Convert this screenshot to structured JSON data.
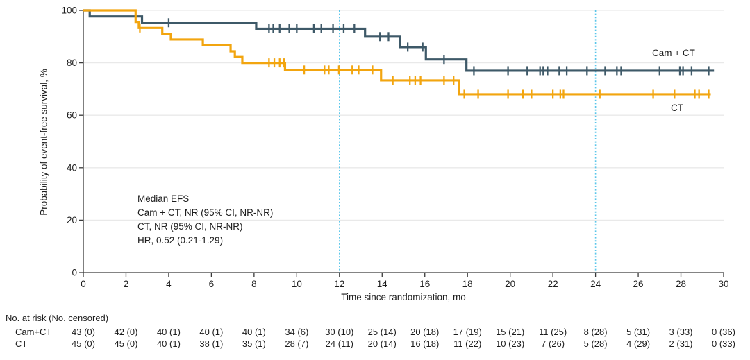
{
  "chart_data": {
    "type": "line",
    "subtype": "kaplan-meier-step",
    "title": "",
    "xlabel": "Time since randomization, mo",
    "ylabel": "Probability of event-free survival, %",
    "xlim": [
      0,
      30
    ],
    "ylim": [
      0,
      100
    ],
    "xticks": [
      0,
      2,
      4,
      6,
      8,
      10,
      12,
      14,
      16,
      18,
      20,
      22,
      24,
      26,
      28,
      30
    ],
    "yticks": [
      0,
      20,
      40,
      60,
      80,
      100
    ],
    "grid_y_values": [
      20,
      40,
      60,
      80,
      100
    ],
    "grid_on": true,
    "reference_lines_x": [
      12,
      24
    ],
    "reference_line_color": "#5bc6ea",
    "gridline_color": "#e9e9e9",
    "axis_color": "#3a3a3a",
    "annotation_lines": [
      "Median EFS",
      "Cam + CT, NR (95% CI, NR-NR)",
      "CT, NR (95% CI, NR-NR)",
      "HR, 0.52 (0.21-1.29)"
    ],
    "series": [
      {
        "id": "cam-ct",
        "name": "Cam+CT",
        "label": "Cam + CT",
        "color": "#3e5968",
        "end": 29.55,
        "steps": [
          [
            0,
            100
          ],
          [
            0.3,
            97.7
          ],
          [
            2.75,
            95.3
          ],
          [
            8.1,
            93.0
          ],
          [
            13.2,
            90.0
          ],
          [
            14.85,
            86.0
          ],
          [
            16.05,
            81.3
          ],
          [
            17.95,
            77.0
          ]
        ],
        "censors": [
          [
            4.0,
            95.3
          ],
          [
            8.7,
            93.0
          ],
          [
            8.9,
            93.0
          ],
          [
            9.2,
            93.0
          ],
          [
            9.65,
            93.0
          ],
          [
            10.0,
            93.0
          ],
          [
            10.8,
            93.0
          ],
          [
            11.15,
            93.0
          ],
          [
            11.7,
            93.0
          ],
          [
            12.2,
            93.0
          ],
          [
            12.7,
            93.0
          ],
          [
            13.9,
            90.0
          ],
          [
            14.3,
            90.0
          ],
          [
            15.2,
            86.0
          ],
          [
            15.9,
            86.0
          ],
          [
            16.9,
            81.3
          ],
          [
            18.3,
            77.0
          ],
          [
            19.9,
            77.0
          ],
          [
            20.8,
            77.0
          ],
          [
            21.4,
            77.0
          ],
          [
            21.55,
            77.0
          ],
          [
            21.75,
            77.0
          ],
          [
            22.3,
            77.0
          ],
          [
            22.65,
            77.0
          ],
          [
            23.6,
            77.0
          ],
          [
            24.45,
            77.0
          ],
          [
            25.0,
            77.0
          ],
          [
            25.2,
            77.0
          ],
          [
            27.0,
            77.0
          ],
          [
            27.95,
            77.0
          ],
          [
            28.1,
            77.0
          ],
          [
            28.5,
            77.0
          ],
          [
            29.3,
            77.0
          ]
        ]
      },
      {
        "id": "ct",
        "name": "CT",
        "label": "CT",
        "color": "#f2a50f",
        "end": 29.4,
        "steps": [
          [
            0,
            100
          ],
          [
            2.45,
            95.6
          ],
          [
            2.6,
            93.3
          ],
          [
            3.7,
            91.1
          ],
          [
            4.1,
            88.9
          ],
          [
            5.6,
            86.7
          ],
          [
            6.9,
            84.4
          ],
          [
            7.1,
            82.2
          ],
          [
            7.45,
            80.0
          ],
          [
            9.45,
            77.3
          ],
          [
            13.95,
            73.3
          ],
          [
            17.6,
            68.0
          ]
        ],
        "censors": [
          [
            2.65,
            93.3
          ],
          [
            8.7,
            80.0
          ],
          [
            8.95,
            80.0
          ],
          [
            9.2,
            80.0
          ],
          [
            9.4,
            80.0
          ],
          [
            10.35,
            77.3
          ],
          [
            11.3,
            77.3
          ],
          [
            11.5,
            77.3
          ],
          [
            11.97,
            77.3
          ],
          [
            12.6,
            77.3
          ],
          [
            12.9,
            77.3
          ],
          [
            13.55,
            77.3
          ],
          [
            14.5,
            73.3
          ],
          [
            15.3,
            73.3
          ],
          [
            15.55,
            73.3
          ],
          [
            15.8,
            73.3
          ],
          [
            16.9,
            73.3
          ],
          [
            17.35,
            73.3
          ],
          [
            17.85,
            68.0
          ],
          [
            18.5,
            68.0
          ],
          [
            19.9,
            68.0
          ],
          [
            20.6,
            68.0
          ],
          [
            21.0,
            68.0
          ],
          [
            22.0,
            68.0
          ],
          [
            22.35,
            68.0
          ],
          [
            22.5,
            68.0
          ],
          [
            24.2,
            68.0
          ],
          [
            26.7,
            68.0
          ],
          [
            27.7,
            68.0
          ],
          [
            28.65,
            68.0
          ],
          [
            28.85,
            68.0
          ],
          [
            29.3,
            68.0
          ]
        ]
      }
    ]
  },
  "risk_table": {
    "title": "No. at risk (No. censored)",
    "times": [
      0,
      2,
      4,
      6,
      8,
      10,
      12,
      14,
      16,
      18,
      20,
      22,
      24,
      26,
      28,
      30
    ],
    "rows": [
      {
        "label": "Cam+CT",
        "values": [
          "43 (0)",
          "42 (0)",
          "40 (1)",
          "40 (1)",
          "40 (1)",
          "34 (6)",
          "30 (10)",
          "25 (14)",
          "20 (18)",
          "17 (19)",
          "15 (21)",
          "11 (25)",
          "8 (28)",
          "5 (31)",
          "3 (33)",
          "0 (36)"
        ]
      },
      {
        "label": "CT",
        "values": [
          "45 (0)",
          "45 (0)",
          "40 (1)",
          "38 (1)",
          "35 (1)",
          "28 (7)",
          "24 (11)",
          "20 (14)",
          "16 (18)",
          "11 (22)",
          "10 (23)",
          "7 (26)",
          "5 (28)",
          "4 (29)",
          "2 (31)",
          "0 (33)"
        ]
      }
    ]
  }
}
